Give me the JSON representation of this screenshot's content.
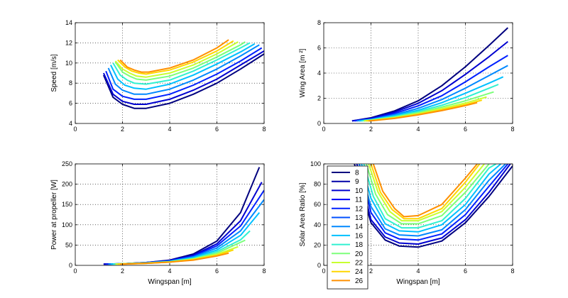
{
  "colors": {
    "8": "#00007f",
    "9": "#0000a8",
    "10": "#0000d0",
    "11": "#0000f8",
    "12": "#0020ff",
    "13": "#0050ff",
    "14": "#0088ff",
    "16": "#00c0ff",
    "18": "#30f0d0",
    "20": "#7cff7a",
    "22": "#c8ff30",
    "24": "#ffd600",
    "26": "#ff9000"
  },
  "chart_data": [
    {
      "type": "line",
      "id": "speed",
      "xlabel": "",
      "ylabel": "Speed [m/s]",
      "xlim": [
        0,
        8
      ],
      "ylim": [
        4,
        14
      ],
      "xticks": [
        "0",
        "2",
        "4",
        "6",
        "8"
      ],
      "yticks": [
        "4",
        "6",
        "8",
        "10",
        "12",
        "14"
      ],
      "grid": true,
      "series_note_shape": "U-shaped curves vs wingspan",
      "series": [
        {
          "key": "8",
          "x": [
            1.2,
            1.6,
            2.0,
            2.5,
            3.0,
            4.0,
            5.0,
            6.0,
            7.0,
            8.0
          ],
          "y": [
            8.8,
            6.6,
            5.9,
            5.5,
            5.5,
            6.0,
            6.9,
            8.0,
            9.4,
            10.9
          ]
        },
        {
          "key": "10",
          "x": [
            1.2,
            1.6,
            2.0,
            2.5,
            3.0,
            4.0,
            5.0,
            6.0,
            7.0,
            8.0
          ],
          "y": [
            9.0,
            6.9,
            6.2,
            5.9,
            5.9,
            6.4,
            7.3,
            8.4,
            9.8,
            11.2
          ]
        },
        {
          "key": "12",
          "x": [
            1.3,
            1.6,
            2.0,
            2.5,
            3.0,
            4.0,
            5.0,
            6.0,
            7.0,
            7.9
          ],
          "y": [
            9.2,
            7.4,
            6.7,
            6.4,
            6.4,
            6.9,
            7.8,
            8.9,
            10.2,
            11.5
          ]
        },
        {
          "key": "14",
          "x": [
            1.4,
            1.7,
            2.0,
            2.5,
            3.0,
            4.0,
            5.0,
            6.0,
            7.0,
            7.8
          ],
          "y": [
            9.5,
            7.9,
            7.3,
            6.9,
            6.9,
            7.4,
            8.3,
            9.4,
            10.7,
            11.8
          ]
        },
        {
          "key": "16",
          "x": [
            1.5,
            1.8,
            2.1,
            2.5,
            3.0,
            4.0,
            5.0,
            6.0,
            7.0,
            7.6
          ],
          "y": [
            9.8,
            8.4,
            7.8,
            7.5,
            7.4,
            7.9,
            8.8,
            9.9,
            11.1,
            11.9
          ]
        },
        {
          "key": "18",
          "x": [
            1.6,
            1.9,
            2.2,
            2.5,
            3.0,
            4.0,
            5.0,
            6.0,
            7.0,
            7.4
          ],
          "y": [
            10.0,
            8.8,
            8.3,
            8.0,
            7.9,
            8.3,
            9.2,
            10.3,
            11.5,
            12.0
          ]
        },
        {
          "key": "20",
          "x": [
            1.7,
            2.0,
            2.3,
            2.6,
            3.0,
            4.0,
            5.0,
            6.0,
            7.0,
            7.2
          ],
          "y": [
            10.1,
            9.1,
            8.7,
            8.4,
            8.3,
            8.7,
            9.5,
            10.6,
            11.8,
            12.1
          ]
        },
        {
          "key": "22",
          "x": [
            1.7,
            2.0,
            2.3,
            2.6,
            3.0,
            4.0,
            5.0,
            6.0,
            6.9
          ],
          "y": [
            10.2,
            9.4,
            9.0,
            8.7,
            8.6,
            9.0,
            9.8,
            10.9,
            12.1
          ]
        },
        {
          "key": "24",
          "x": [
            1.8,
            2.1,
            2.4,
            2.7,
            3.0,
            4.0,
            5.0,
            6.0,
            6.7
          ],
          "y": [
            10.3,
            9.6,
            9.2,
            9.0,
            8.9,
            9.3,
            10.1,
            11.2,
            12.2
          ]
        },
        {
          "key": "26",
          "x": [
            1.9,
            2.2,
            2.5,
            2.8,
            3.1,
            4.0,
            5.0,
            6.0,
            6.5
          ],
          "y": [
            10.3,
            9.6,
            9.3,
            9.1,
            9.1,
            9.5,
            10.3,
            11.5,
            12.3
          ]
        }
      ]
    },
    {
      "type": "line",
      "id": "area",
      "xlabel": "",
      "ylabel": "Wing Area [m ²]",
      "xlim": [
        0,
        8
      ],
      "ylim": [
        0,
        8
      ],
      "xticks": [
        "0",
        "2",
        "4",
        "6",
        "8"
      ],
      "yticks": [
        "0",
        "2",
        "4",
        "6",
        "8"
      ],
      "grid": true,
      "series": [
        {
          "key": "8",
          "x": [
            1.2,
            2.0,
            3.0,
            4.0,
            5.0,
            6.0,
            7.0,
            7.8
          ],
          "y": [
            0.2,
            0.45,
            1.0,
            1.8,
            3.0,
            4.5,
            6.2,
            7.6
          ]
        },
        {
          "key": "10",
          "x": [
            1.2,
            2.0,
            3.0,
            4.0,
            5.0,
            6.0,
            7.0,
            7.8
          ],
          "y": [
            0.2,
            0.4,
            0.9,
            1.6,
            2.6,
            3.9,
            5.3,
            6.5
          ]
        },
        {
          "key": "12",
          "x": [
            1.3,
            2.0,
            3.0,
            4.0,
            5.0,
            6.0,
            7.0,
            7.8
          ],
          "y": [
            0.2,
            0.35,
            0.8,
            1.4,
            2.2,
            3.3,
            4.5,
            5.4
          ]
        },
        {
          "key": "14",
          "x": [
            1.4,
            2.0,
            3.0,
            4.0,
            5.0,
            6.0,
            7.0,
            7.8
          ],
          "y": [
            0.2,
            0.32,
            0.7,
            1.2,
            1.9,
            2.8,
            3.8,
            4.6
          ]
        },
        {
          "key": "16",
          "x": [
            1.5,
            2.0,
            3.0,
            4.0,
            5.0,
            6.0,
            7.0,
            7.6
          ],
          "y": [
            0.2,
            0.3,
            0.62,
            1.05,
            1.65,
            2.4,
            3.2,
            3.7
          ]
        },
        {
          "key": "18",
          "x": [
            1.6,
            2.0,
            3.0,
            4.0,
            5.0,
            6.0,
            7.0,
            7.4
          ],
          "y": [
            0.2,
            0.28,
            0.55,
            0.95,
            1.45,
            2.05,
            2.8,
            3.1
          ]
        },
        {
          "key": "20",
          "x": [
            1.7,
            2.0,
            3.0,
            4.0,
            5.0,
            6.0,
            7.2
          ],
          "y": [
            0.2,
            0.26,
            0.5,
            0.85,
            1.3,
            1.8,
            2.5
          ]
        },
        {
          "key": "22",
          "x": [
            1.7,
            2.0,
            3.0,
            4.0,
            5.0,
            6.0,
            6.9
          ],
          "y": [
            0.2,
            0.24,
            0.46,
            0.78,
            1.18,
            1.62,
            2.1
          ]
        },
        {
          "key": "24",
          "x": [
            1.8,
            2.0,
            3.0,
            4.0,
            5.0,
            6.0,
            6.7
          ],
          "y": [
            0.2,
            0.22,
            0.42,
            0.72,
            1.08,
            1.5,
            1.85
          ]
        },
        {
          "key": "26",
          "x": [
            1.9,
            2.0,
            3.0,
            4.0,
            5.0,
            6.0,
            6.5
          ],
          "y": [
            0.2,
            0.21,
            0.4,
            0.68,
            1.02,
            1.42,
            1.65
          ]
        }
      ]
    },
    {
      "type": "line",
      "id": "power",
      "xlabel": "Wingspan [m]",
      "ylabel": "Power at propeller [W]",
      "xlim": [
        0,
        8
      ],
      "ylim": [
        0,
        250
      ],
      "xticks": [
        "0",
        "2",
        "4",
        "6",
        "8"
      ],
      "yticks": [
        "0",
        "50",
        "100",
        "150",
        "200",
        "250"
      ],
      "grid": true,
      "series": [
        {
          "key": "8",
          "x": [
            1.2,
            2.0,
            3.0,
            4.0,
            5.0,
            6.0,
            7.0,
            7.8
          ],
          "y": [
            3,
            4,
            7,
            13,
            28,
            60,
            130,
            242
          ]
        },
        {
          "key": "10",
          "x": [
            1.2,
            2.0,
            3.0,
            4.0,
            5.0,
            6.0,
            7.0,
            7.9
          ],
          "y": [
            3,
            4,
            7,
            12,
            25,
            53,
            110,
            205
          ]
        },
        {
          "key": "12",
          "x": [
            1.3,
            2.0,
            3.0,
            4.0,
            5.0,
            6.0,
            7.0,
            8.0
          ],
          "y": [
            3,
            4,
            7,
            11,
            23,
            48,
            97,
            185
          ]
        },
        {
          "key": "14",
          "x": [
            1.4,
            2.0,
            3.0,
            4.0,
            5.0,
            6.0,
            7.0,
            8.0
          ],
          "y": [
            3,
            4,
            6,
            10,
            21,
            43,
            85,
            162
          ]
        },
        {
          "key": "16",
          "x": [
            1.5,
            2.0,
            3.0,
            4.0,
            5.0,
            6.0,
            7.0,
            7.8
          ],
          "y": [
            3,
            4,
            6,
            10,
            19,
            38,
            74,
            130
          ]
        },
        {
          "key": "18",
          "x": [
            1.6,
            2.0,
            3.0,
            4.0,
            5.0,
            6.0,
            7.0,
            7.4
          ],
          "y": [
            3,
            4,
            6,
            9,
            17,
            34,
            63,
            85
          ]
        },
        {
          "key": "20",
          "x": [
            1.7,
            2.0,
            3.0,
            4.0,
            5.0,
            6.0,
            7.2
          ],
          "y": [
            3,
            4,
            6,
            9,
            16,
            30,
            62
          ]
        },
        {
          "key": "22",
          "x": [
            1.7,
            2.0,
            3.0,
            4.0,
            5.0,
            6.0,
            6.9
          ],
          "y": [
            3,
            4,
            5,
            8,
            15,
            27,
            46
          ]
        },
        {
          "key": "24",
          "x": [
            1.8,
            2.0,
            3.0,
            4.0,
            5.0,
            6.0,
            6.7
          ],
          "y": [
            3,
            3,
            5,
            8,
            14,
            25,
            38
          ]
        },
        {
          "key": "26",
          "x": [
            1.9,
            2.0,
            3.0,
            4.0,
            5.0,
            6.0,
            6.5
          ],
          "y": [
            3,
            3,
            5,
            8,
            13,
            23,
            30
          ]
        }
      ]
    },
    {
      "type": "line",
      "id": "solar",
      "xlabel": "Wingspan [m]",
      "ylabel": "Solar Area Ratio [%]",
      "xlim": [
        0,
        8
      ],
      "ylim": [
        0,
        100
      ],
      "xticks": [
        "0",
        "2",
        "4",
        "6",
        "8"
      ],
      "yticks": [
        "0",
        "20",
        "40",
        "60",
        "80",
        "100"
      ],
      "grid": true,
      "legend": {
        "placement": "top-left",
        "entries": [
          "8",
          "9",
          "10",
          "11",
          "12",
          "13",
          "14",
          "16",
          "18",
          "20",
          "22",
          "24",
          "26"
        ]
      },
      "series": [
        {
          "key": "8",
          "x": [
            1.3,
            2.0,
            2.6,
            3.2,
            4.0,
            5.0,
            6.0,
            7.0,
            8.0
          ],
          "y": [
            100,
            42,
            25,
            19,
            18,
            24,
            42,
            68,
            98
          ]
        },
        {
          "key": "10",
          "x": [
            1.4,
            2.0,
            2.6,
            3.2,
            4.0,
            5.0,
            6.0,
            7.0,
            7.9
          ],
          "y": [
            100,
            45,
            28,
            22,
            21,
            27,
            45,
            72,
            100
          ]
        },
        {
          "key": "12",
          "x": [
            1.5,
            2.0,
            2.6,
            3.2,
            4.0,
            5.0,
            6.0,
            7.0,
            7.8
          ],
          "y": [
            100,
            52,
            32,
            26,
            25,
            31,
            50,
            78,
            100
          ]
        },
        {
          "key": "14",
          "x": [
            1.5,
            2.0,
            2.6,
            3.2,
            4.0,
            5.0,
            6.0,
            7.0,
            7.7
          ],
          "y": [
            100,
            58,
            36,
            30,
            29,
            35,
            55,
            84,
            100
          ]
        },
        {
          "key": "16",
          "x": [
            1.6,
            2.0,
            2.6,
            3.2,
            4.0,
            5.0,
            6.0,
            7.0,
            7.5
          ],
          "y": [
            100,
            66,
            41,
            34,
            33,
            40,
            60,
            90,
            100
          ]
        },
        {
          "key": "18",
          "x": [
            1.7,
            2.1,
            2.6,
            3.3,
            4.0,
            5.0,
            6.0,
            7.0,
            7.3
          ],
          "y": [
            100,
            68,
            46,
            37,
            37,
            44,
            66,
            96,
            100
          ]
        },
        {
          "key": "20",
          "x": [
            1.8,
            2.2,
            2.7,
            3.3,
            4.0,
            5.0,
            6.0,
            7.0
          ],
          "y": [
            100,
            70,
            50,
            41,
            41,
            49,
            72,
            100
          ]
        },
        {
          "key": "22",
          "x": [
            1.9,
            2.3,
            2.8,
            3.3,
            4.0,
            5.0,
            6.0,
            6.8
          ],
          "y": [
            100,
            72,
            53,
            44,
            44,
            53,
            77,
            100
          ]
        },
        {
          "key": "24",
          "x": [
            2.0,
            2.4,
            2.9,
            3.4,
            4.0,
            5.0,
            6.0,
            6.6
          ],
          "y": [
            100,
            72,
            55,
            46,
            46,
            56,
            82,
            100
          ]
        },
        {
          "key": "26",
          "x": [
            2.1,
            2.5,
            3.0,
            3.4,
            4.0,
            5.0,
            6.0,
            6.5
          ],
          "y": [
            100,
            73,
            56,
            48,
            49,
            60,
            86,
            100
          ]
        }
      ]
    }
  ]
}
